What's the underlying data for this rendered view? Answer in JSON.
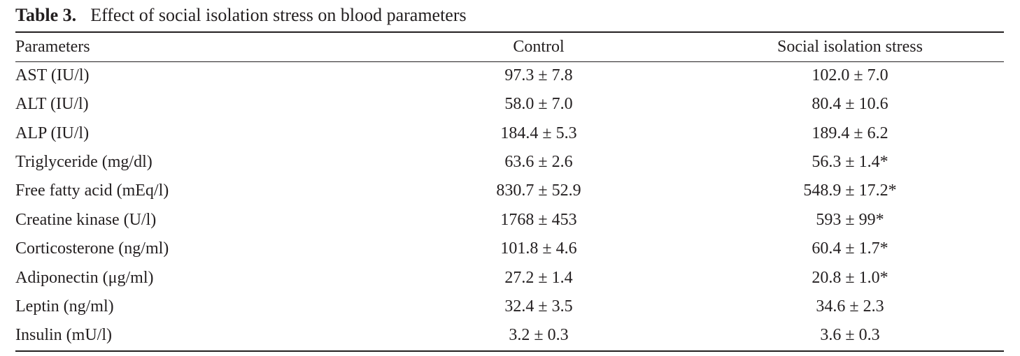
{
  "caption": {
    "label": "Table 3.",
    "title": "Effect of social isolation stress on blood parameters"
  },
  "table": {
    "headers": [
      "Parameters",
      "Control",
      "Social isolation stress"
    ],
    "rows": [
      [
        "AST (IU/l)",
        "97.3 ± 7.8",
        "102.0 ± 7.0"
      ],
      [
        "ALT (IU/l)",
        "58.0 ± 7.0",
        "80.4 ± 10.6"
      ],
      [
        "ALP (IU/l)",
        "184.4 ± 5.3",
        "189.4 ± 6.2"
      ],
      [
        "Triglyceride (mg/dl)",
        "63.6 ± 2.6",
        "56.3 ± 1.4*"
      ],
      [
        "Free fatty acid (mEq/l)",
        "830.7 ± 52.9",
        "548.9 ± 17.2*"
      ],
      [
        "Creatine kinase (U/l)",
        "1768 ± 453",
        "593 ± 99*"
      ],
      [
        "Corticosterone (ng/ml)",
        "101.8 ± 4.6",
        "60.4 ± 1.7*"
      ],
      [
        "Adiponectin (μg/ml)",
        "27.2 ± 1.4",
        "20.8 ± 1.0*"
      ],
      [
        "Leptin (ng/ml)",
        "32.4 ± 3.5",
        "34.6 ± 2.3"
      ],
      [
        "Insulin (mU/l)",
        "3.2 ± 0.3",
        "3.6 ± 0.3"
      ]
    ]
  }
}
